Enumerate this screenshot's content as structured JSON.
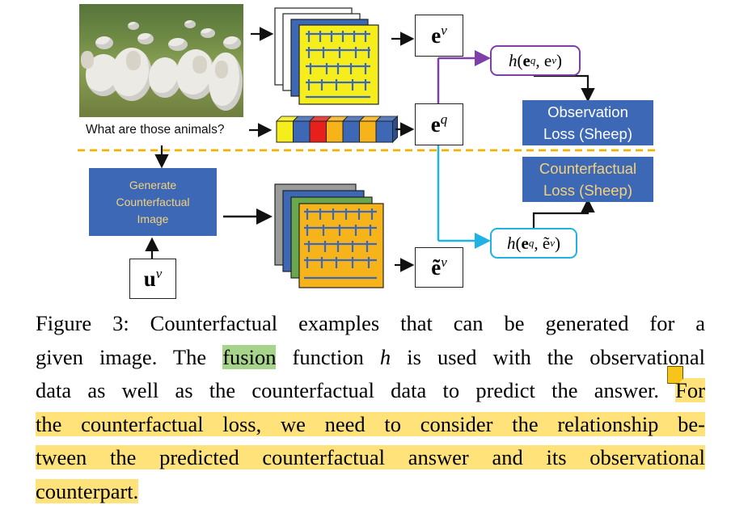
{
  "figure": {
    "question": "What are those animals?",
    "vectors": {
      "ev": "e",
      "ev_sup": "v",
      "eq": "e",
      "eq_sup": "q",
      "etv": "ẽ",
      "etv_sup": "v",
      "uv": "u",
      "uv_sup": "v"
    },
    "fusion_observational": "h(e",
    "fusion_obs_sup1": "q",
    "fusion_obs_mid": ", e",
    "fusion_obs_sup2": "v",
    "fusion_obs_end": ")",
    "fusion_counterfactual": "h(e",
    "fusion_cf_sup1": "q",
    "fusion_cf_mid": ", ẽ",
    "fusion_cf_sup2": "v",
    "fusion_cf_end": ")",
    "observation_loss_line1": "Observation",
    "observation_loss_line2": "Loss (Sheep)",
    "counterfactual_loss_line1": "Counterfactual",
    "counterfactual_loss_line2": "Loss (Sheep)",
    "generate_line1": "Generate",
    "generate_line2": "Counterfactual",
    "generate_line3": "Image",
    "colors": {
      "purple": "#7e3fa8",
      "cyan": "#1fb2e3",
      "dashed_orange": "#f2b200",
      "box_blue": "#3d68b6",
      "cf_text": "#f5d27a",
      "grid_yellow": "#f5ee1c",
      "grid_orange": "#f7b31a",
      "token_colors": [
        "#f5ee1c",
        "#3d68b6",
        "#e8201c",
        "#f7b31a",
        "#3d68b6",
        "#f7b31a",
        "#3d68b6"
      ]
    }
  },
  "caption": {
    "line1": "Figure 3:  Counterfactual examples that can be generated for a",
    "line2_a": "given image. The ",
    "line2_fusion": "fusion",
    "line2_b": " function ",
    "line2_h": "h",
    "line2_c": " is used with the observational",
    "line3_a": "data as well as the counterfactual data to predict the answer. ",
    "line3_b": "For",
    "line4": "the counterfactual loss, we need to consider the relationship be-",
    "line5": "tween the predicted counterfactual answer and its observational",
    "line6": "counterpart."
  }
}
